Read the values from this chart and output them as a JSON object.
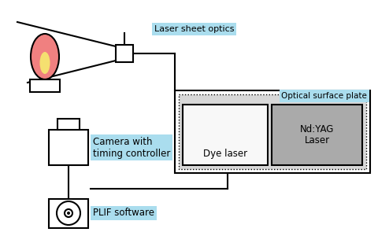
{
  "bg_color": "#ffffff",
  "cyan_label_bg": "#aaddee",
  "flame_pink": "#f08080",
  "flame_yellow": "#f5e070",
  "gray_laser": "#aaaaaa",
  "white_laser": "#f8f8f8",
  "outer_plate_bg": "#d8d8d8",
  "labels": {
    "laser_sheet_optics": "Laser sheet optics",
    "optical_surface_plate": "Optical surface plate",
    "dye_laser": "Dye laser",
    "ndyag_laser": "Nd:YAG\nLaser",
    "camera": "Camera with\ntiming controller",
    "plif": "PLIF software"
  },
  "figsize": [
    4.8,
    2.95
  ],
  "dpi": 100
}
